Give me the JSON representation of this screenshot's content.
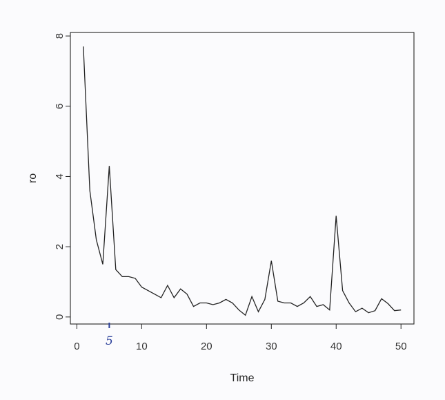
{
  "chart_data": {
    "type": "line",
    "xlabel": "Time",
    "ylabel": "ro",
    "xlim": [
      -1,
      52
    ],
    "ylim": [
      -0.2,
      8.1
    ],
    "x_ticks": [
      0,
      10,
      20,
      30,
      40,
      50
    ],
    "y_ticks": [
      0,
      2,
      4,
      6,
      8
    ],
    "grid": false,
    "series": [
      {
        "x": [
          1,
          2,
          3,
          4,
          5,
          6,
          7,
          8,
          9,
          10,
          11,
          12,
          13,
          14,
          15,
          16,
          17,
          18,
          19,
          20,
          21,
          22,
          23,
          24,
          25,
          26,
          27,
          28,
          29,
          30,
          31,
          32,
          33,
          34,
          35,
          36,
          37,
          38,
          39,
          40,
          41,
          42,
          43,
          44,
          45,
          46,
          47,
          48,
          49,
          50
        ],
        "values": [
          7.7,
          3.6,
          2.2,
          1.5,
          4.3,
          1.35,
          1.15,
          1.15,
          1.1,
          0.85,
          0.75,
          0.65,
          0.55,
          0.9,
          0.55,
          0.8,
          0.65,
          0.3,
          0.4,
          0.4,
          0.35,
          0.4,
          0.5,
          0.4,
          0.2,
          0.05,
          0.58,
          0.15,
          0.5,
          1.6,
          0.45,
          0.4,
          0.4,
          0.3,
          0.4,
          0.58,
          0.3,
          0.35,
          0.2,
          2.88,
          0.75,
          0.4,
          0.15,
          0.25,
          0.12,
          0.18,
          0.52,
          0.38,
          0.18,
          0.2
        ]
      }
    ],
    "annotations": [
      {
        "text": "5",
        "x": 5
      }
    ],
    "colors": {
      "line": "#222222",
      "frame": "#222222",
      "annotation": "#2a3f9a"
    }
  }
}
